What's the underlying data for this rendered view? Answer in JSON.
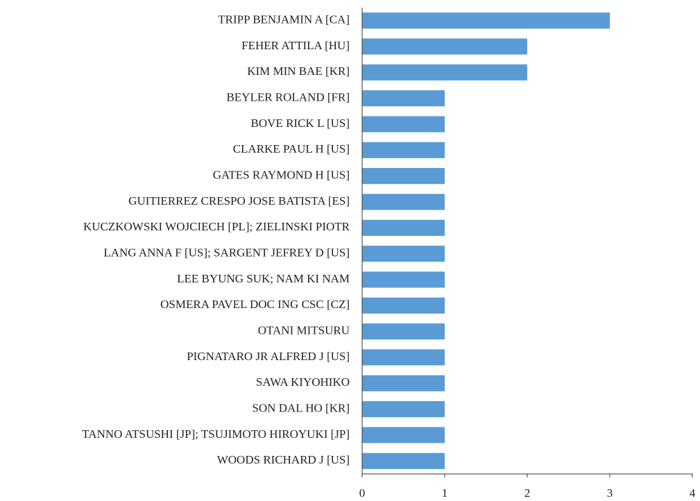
{
  "chart_data": {
    "type": "barh",
    "categories": [
      "TRIPP BENJAMIN A [CA]",
      "FEHER ATTILA [HU]",
      "KIM MIN BAE [KR]",
      "BEYLER ROLAND [FR]",
      "BOVE RICK L [US]",
      "CLARKE PAUL H [US]",
      "GATES RAYMOND H [US]",
      "GUITIERREZ CRESPO JOSE BATISTA [ES]",
      "KUCZKOWSKI WOJCIECH [PL]; ZIELINSKI PIOTR",
      "LANG ANNA F [US]; SARGENT JEFREY D [US]",
      "LEE BYUNG SUK; NAM KI NAM",
      "OSMERA PAVEL DOC ING CSC [CZ]",
      "OTANI MITSURU",
      "PIGNATARO JR ALFRED J [US]",
      "SAWA KIYOHIKO",
      "SON DAL HO [KR]",
      "TANNO ATSUSHI [JP]; TSUJIMOTO HIROYUKI [JP]",
      "WOODS RICHARD J [US]"
    ],
    "values": [
      3,
      2,
      2,
      1,
      1,
      1,
      1,
      1,
      1,
      1,
      1,
      1,
      1,
      1,
      1,
      1,
      1,
      1
    ],
    "color": "#5b9bd5",
    "xlim": [
      0,
      4
    ],
    "xticks": [
      0,
      1,
      2,
      3,
      4
    ],
    "grid": false
  }
}
